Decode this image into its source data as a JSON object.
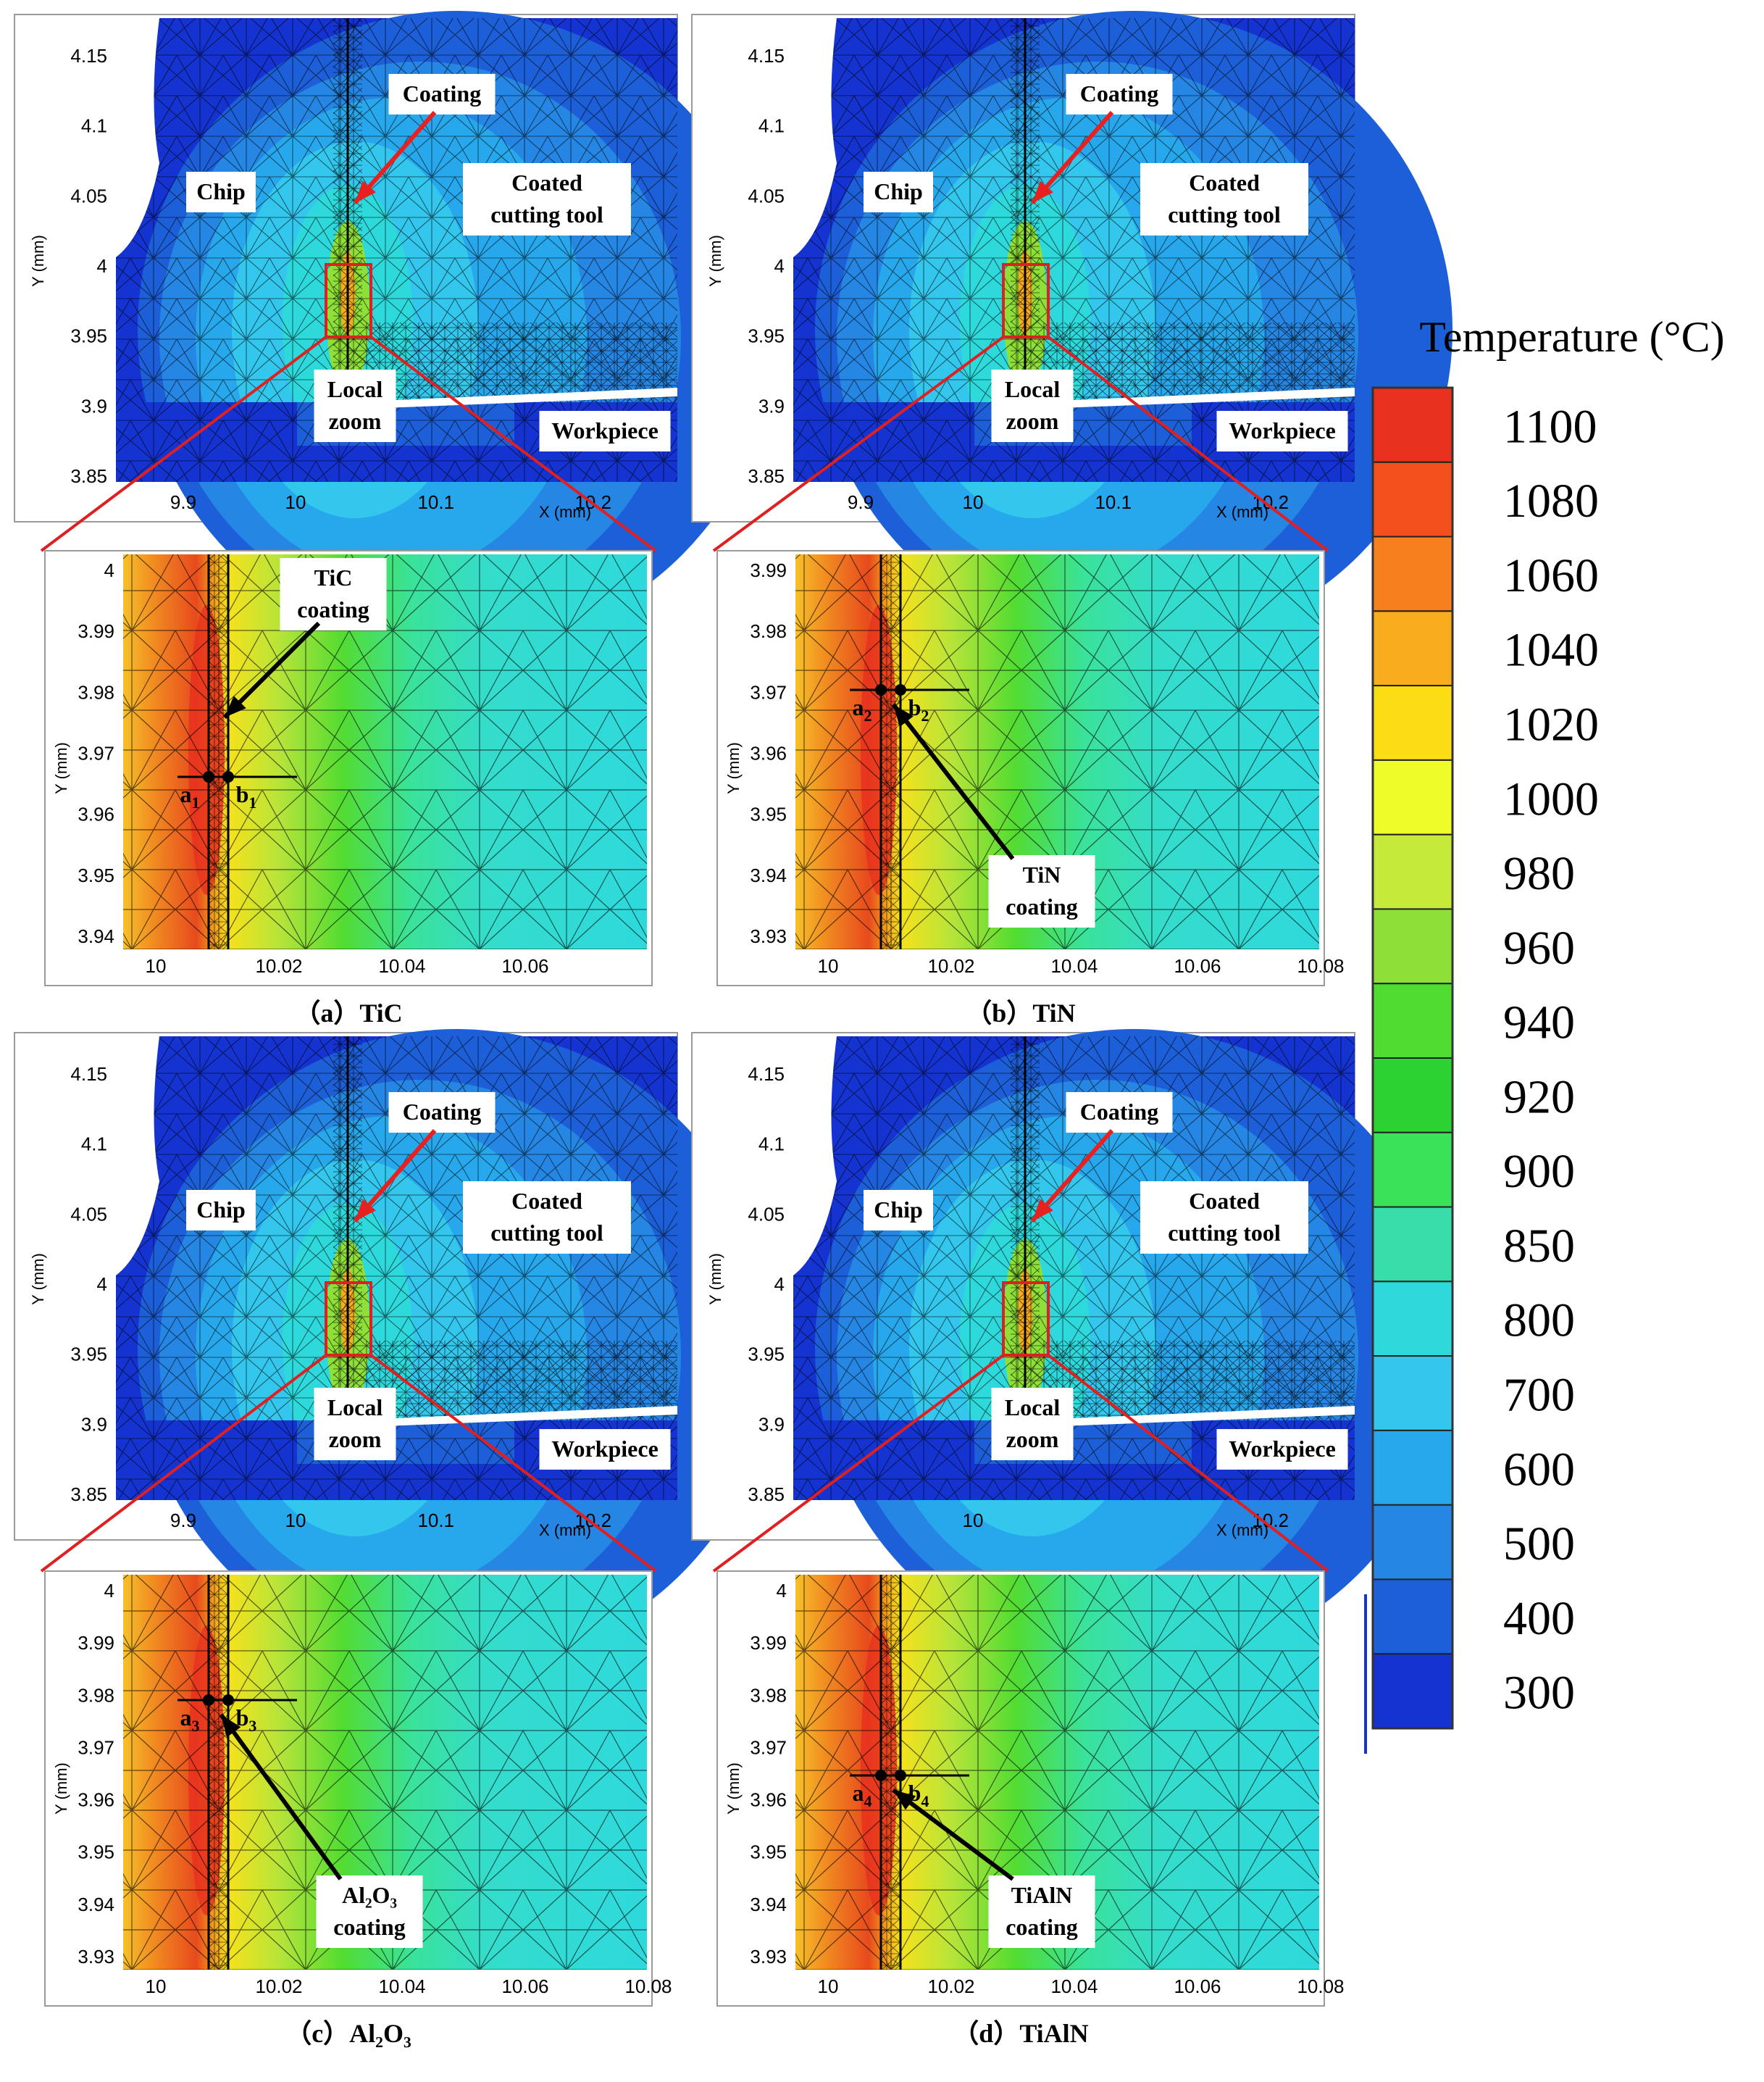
{
  "colorbar": {
    "title": "Temperature (°C)",
    "values": [
      "1100",
      "1080",
      "1060",
      "1040",
      "1020",
      "1000",
      "980",
      "960",
      "940",
      "920",
      "900",
      "850",
      "800",
      "700",
      "600",
      "500",
      "400",
      "300"
    ],
    "colors": [
      "#e8321e",
      "#f4501e",
      "#f7801e",
      "#f8ad1e",
      "#fadd14",
      "#eefc2a",
      "#c6ea3a",
      "#8ee038",
      "#50dc30",
      "#2cd232",
      "#3ae25a",
      "#38ddaa",
      "#2ed9dc",
      "#34c7ee",
      "#28a8ec",
      "#2686e4",
      "#1d5fd8",
      "#1433d0"
    ]
  },
  "panels": [
    {
      "id": "a",
      "caption": "（a）TiC",
      "coarse": {
        "x_ticks": [
          "9.9",
          "10",
          "10.1",
          "10.2"
        ],
        "y_ticks": [
          "4.15",
          "4.1",
          "4.05",
          "4",
          "3.95",
          "3.9",
          "3.85"
        ],
        "xlabel": "X (mm)",
        "ylabel": "Y (mm)",
        "labels": {
          "coating": "Coating",
          "chip": "Chip",
          "tool": [
            "Coated",
            "cutting tool"
          ],
          "zoom": [
            "Local",
            "zoom"
          ],
          "workpiece": "Workpiece"
        }
      },
      "zoom": {
        "x_ticks": [
          "10",
          "10.02",
          "10.04",
          "10.06"
        ],
        "y_ticks": [
          "4",
          "3.99",
          "3.98",
          "3.97",
          "3.96",
          "3.95",
          "3.94"
        ],
        "ylabel": "Y (mm)",
        "coating": [
          "TiC",
          "coating"
        ],
        "point_a": "a",
        "point_b": "b",
        "sub": "1"
      }
    },
    {
      "id": "b",
      "caption": "（b）TiN",
      "coarse": {
        "x_ticks": [
          "9.9",
          "10",
          "10.1",
          "10.2"
        ],
        "y_ticks": [
          "4.15",
          "4.1",
          "4.05",
          "4",
          "3.95",
          "3.9",
          "3.85"
        ],
        "xlabel": "X (mm)",
        "ylabel": "Y (mm)",
        "labels": {
          "coating": "Coating",
          "chip": "Chip",
          "tool": [
            "Coated",
            "cutting tool"
          ],
          "zoom": [
            "Local",
            "zoom"
          ],
          "workpiece": "Workpiece"
        }
      },
      "zoom": {
        "x_ticks": [
          "10",
          "10.02",
          "10.04",
          "10.06",
          "10.08"
        ],
        "y_ticks": [
          "3.99",
          "3.98",
          "3.97",
          "3.96",
          "3.95",
          "3.94",
          "3.93"
        ],
        "ylabel": "Y (mm)",
        "coating": [
          "TiN",
          "coating"
        ],
        "point_a": "a",
        "point_b": "b",
        "sub": "2"
      }
    },
    {
      "id": "c",
      "caption": "（c）Al₂O₃",
      "coarse": {
        "x_ticks": [
          "9.9",
          "10",
          "10.1",
          "10.2"
        ],
        "y_ticks": [
          "4.15",
          "4.1",
          "4.05",
          "4",
          "3.95",
          "3.9",
          "3.85"
        ],
        "xlabel": "X (mm)",
        "ylabel": "Y (mm)",
        "labels": {
          "coating": "Coating",
          "chip": "Chip",
          "tool": [
            "Coated",
            "cutting tool"
          ],
          "zoom": [
            "Local",
            "zoom"
          ],
          "workpiece": "Workpiece"
        }
      },
      "zoom": {
        "x_ticks": [
          "10",
          "10.02",
          "10.04",
          "10.06",
          "10.08"
        ],
        "y_ticks": [
          "4",
          "3.99",
          "3.98",
          "3.97",
          "3.96",
          "3.95",
          "3.94",
          "3.93"
        ],
        "ylabel": "Y (mm)",
        "coating": [
          "Al₂O₃",
          "coating"
        ],
        "point_a": "a",
        "point_b": "b",
        "sub": "3"
      }
    },
    {
      "id": "d",
      "caption": "（d）TiAlN",
      "coarse": {
        "x_ticks": [
          "10",
          "10.2"
        ],
        "y_ticks": [
          "4.15",
          "4.1",
          "4.05",
          "4",
          "3.95",
          "3.9",
          "3.85"
        ],
        "xlabel": "X (mm)",
        "ylabel": "Y (mm)",
        "labels": {
          "coating": "Coating",
          "chip": "Chip",
          "tool": [
            "Coated",
            "cutting tool"
          ],
          "zoom": [
            "Local",
            "zoom"
          ],
          "workpiece": "Workpiece"
        }
      },
      "zoom": {
        "x_ticks": [
          "10",
          "10.02",
          "10.04",
          "10.06",
          "10.08"
        ],
        "y_ticks": [
          "4",
          "3.99",
          "3.98",
          "3.97",
          "3.96",
          "3.95",
          "3.94",
          "3.93"
        ],
        "ylabel": "Y (mm)",
        "coating": [
          "TiAlN",
          "coating"
        ],
        "point_a": "a",
        "point_b": "b",
        "sub": "4"
      }
    }
  ]
}
